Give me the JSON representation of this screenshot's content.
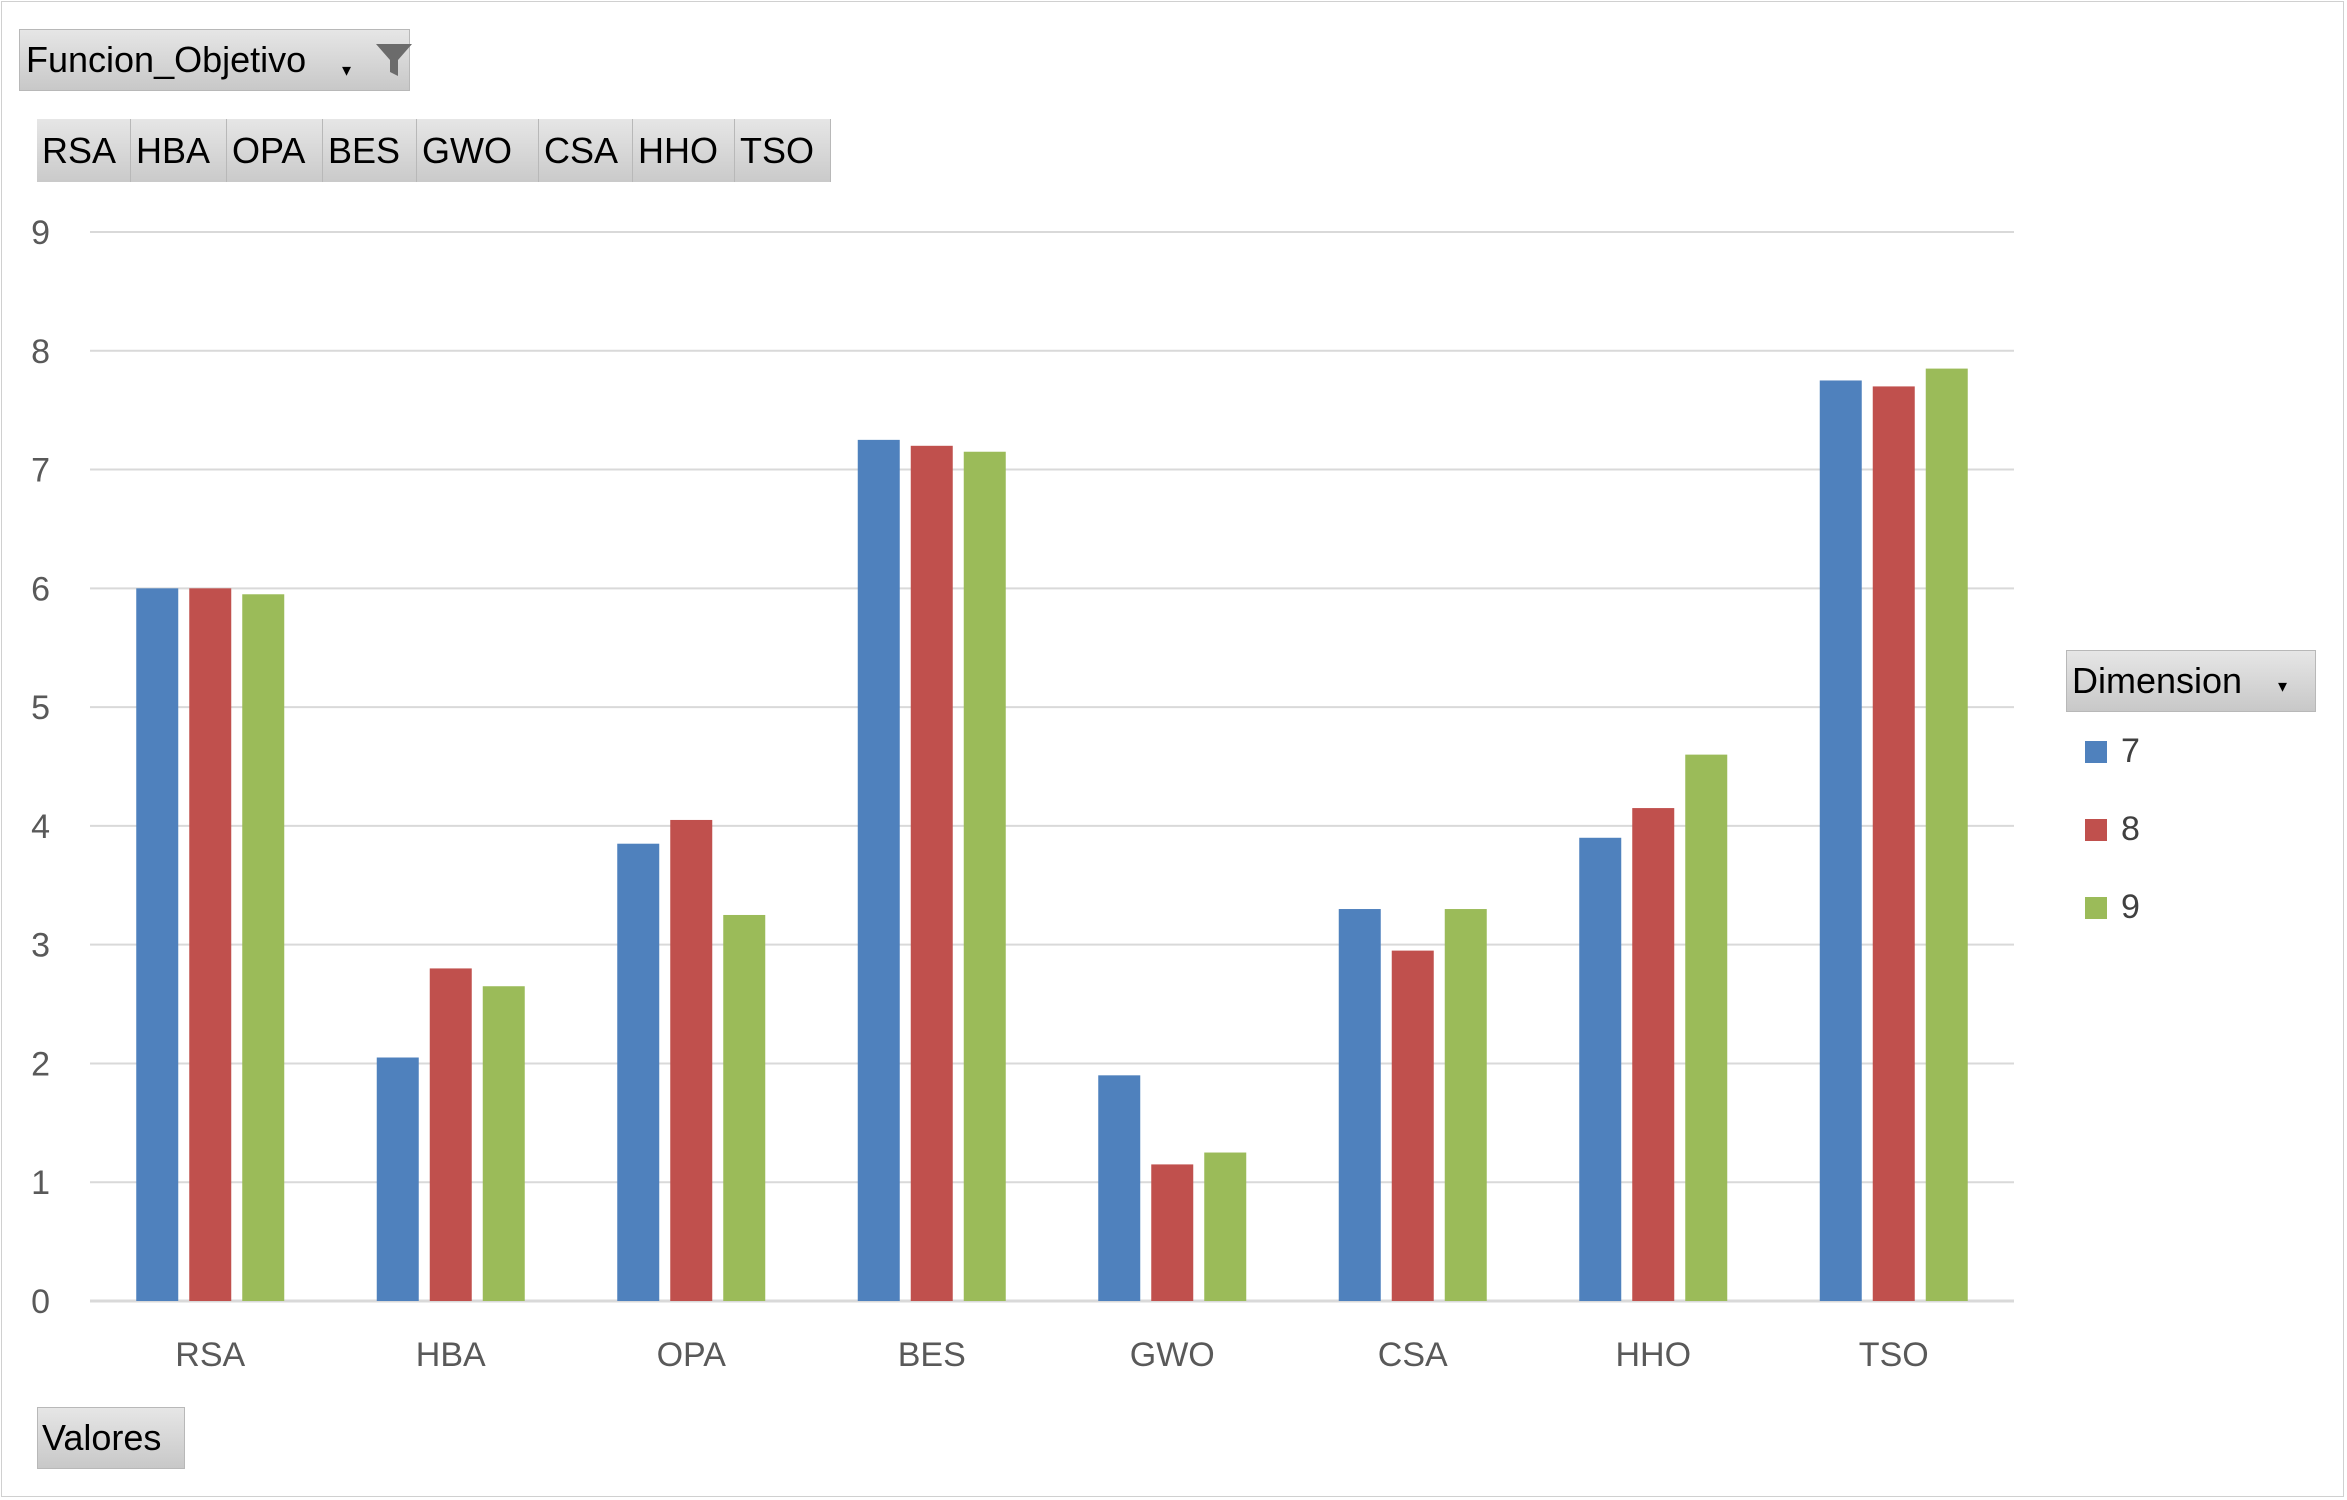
{
  "filter_field": {
    "label": "Funcion_Objetivo",
    "icon": "funnel-icon"
  },
  "axis_buttons": [
    "RSA",
    "HBA",
    "OPA",
    "BES",
    "GWO",
    "CSA",
    "HHO",
    "TSO"
  ],
  "legend_field": {
    "label": "Dimension"
  },
  "values_field": {
    "label": "Valores"
  },
  "chart_data": {
    "type": "bar",
    "categories": [
      "RSA",
      "HBA",
      "OPA",
      "BES",
      "GWO",
      "CSA",
      "HHO",
      "TSO"
    ],
    "series": [
      {
        "name": "7",
        "color": "#4f81bd",
        "values": [
          6.0,
          2.05,
          3.85,
          7.25,
          1.9,
          3.3,
          3.9,
          7.75
        ]
      },
      {
        "name": "8",
        "color": "#c0504d",
        "values": [
          6.0,
          2.8,
          4.05,
          7.2,
          1.15,
          2.95,
          4.15,
          7.7
        ]
      },
      {
        "name": "9",
        "color": "#9bbb59",
        "values": [
          5.95,
          2.65,
          3.25,
          7.15,
          1.25,
          3.3,
          4.6,
          7.85
        ]
      }
    ],
    "y_ticks": [
      "0",
      "1",
      "2",
      "3",
      "4",
      "5",
      "6",
      "7",
      "8",
      "9"
    ],
    "ylim": [
      0,
      9
    ],
    "grid": true,
    "legend_position": "right"
  }
}
